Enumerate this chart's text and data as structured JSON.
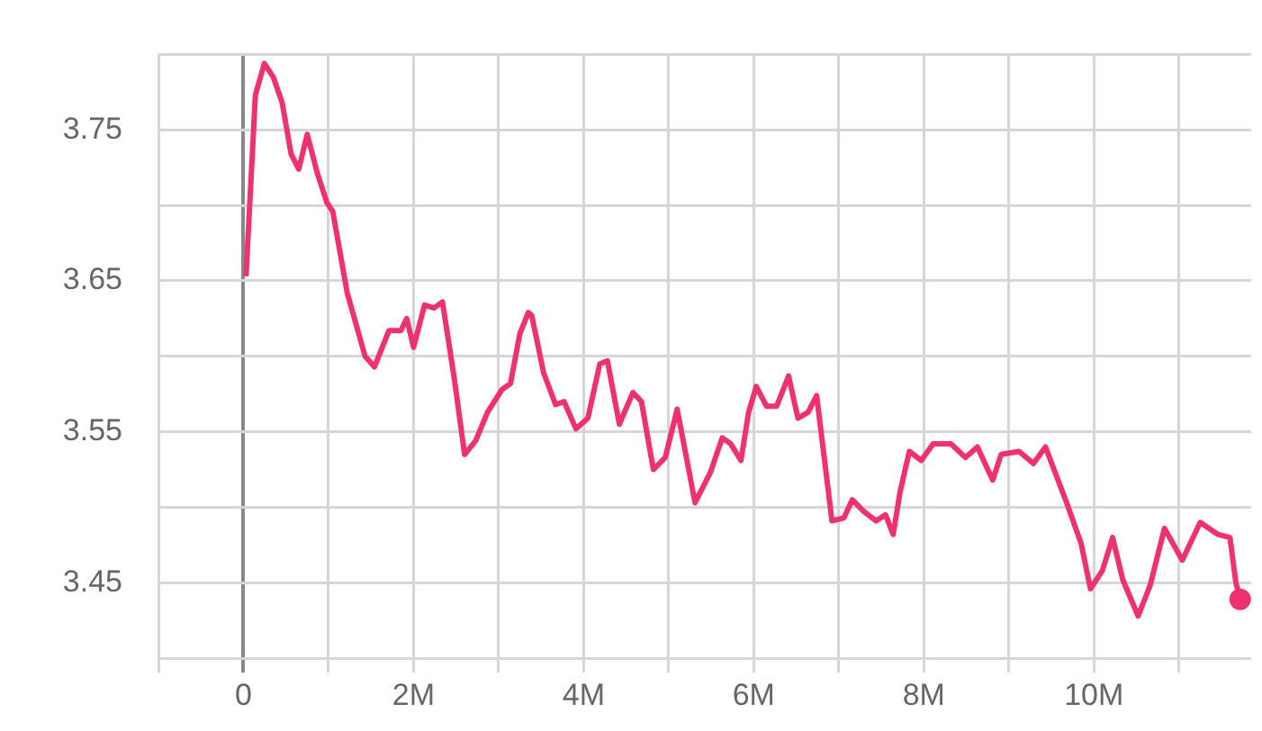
{
  "chart_data": {
    "type": "line",
    "x": [
      30000,
      140000,
      245000,
      350000,
      455000,
      560000,
      650000,
      750000,
      870000,
      980000,
      1050000,
      1220000,
      1430000,
      1540000,
      1710000,
      1850000,
      1920000,
      2000000,
      2130000,
      2240000,
      2340000,
      2480000,
      2600000,
      2730000,
      2870000,
      3040000,
      3140000,
      3250000,
      3350000,
      3390000,
      3530000,
      3670000,
      3770000,
      3910000,
      4050000,
      4190000,
      4280000,
      4420000,
      4580000,
      4680000,
      4820000,
      4960000,
      5100000,
      5310000,
      5490000,
      5630000,
      5730000,
      5850000,
      5940000,
      6030000,
      6150000,
      6270000,
      6410000,
      6520000,
      6640000,
      6740000,
      6920000,
      7060000,
      7160000,
      7300000,
      7440000,
      7550000,
      7640000,
      7720000,
      7830000,
      7970000,
      8110000,
      8320000,
      8490000,
      8630000,
      8810000,
      8910000,
      9120000,
      9290000,
      9430000,
      9680000,
      9850000,
      9960000,
      10100000,
      10220000,
      10340000,
      10520000,
      10660000,
      10830000,
      11040000,
      11250000,
      11460000,
      11600000,
      11670000,
      11720000
    ],
    "series": [
      {
        "color": "#f0316f",
        "values": [
          3.653,
          3.773,
          3.794,
          3.785,
          3.768,
          3.734,
          3.724,
          3.747,
          3.721,
          3.702,
          3.696,
          3.642,
          3.6,
          3.593,
          3.617,
          3.617,
          3.625,
          3.606,
          3.634,
          3.632,
          3.636,
          3.585,
          3.535,
          3.544,
          3.563,
          3.578,
          3.582,
          3.615,
          3.629,
          3.627,
          3.589,
          3.568,
          3.57,
          3.552,
          3.559,
          3.595,
          3.597,
          3.555,
          3.576,
          3.57,
          3.525,
          3.533,
          3.565,
          3.503,
          3.523,
          3.546,
          3.542,
          3.531,
          3.563,
          3.58,
          3.567,
          3.567,
          3.587,
          3.559,
          3.563,
          3.574,
          3.491,
          3.493,
          3.505,
          3.497,
          3.491,
          3.495,
          3.482,
          3.51,
          3.537,
          3.531,
          3.542,
          3.542,
          3.533,
          3.54,
          3.518,
          3.535,
          3.537,
          3.529,
          3.54,
          3.503,
          3.476,
          3.446,
          3.458,
          3.48,
          3.452,
          3.428,
          3.448,
          3.486,
          3.465,
          3.49,
          3.482,
          3.48,
          3.45,
          3.439
        ]
      }
    ],
    "xlim": [
      -1000000,
      11850000
    ],
    "xticks": [
      {
        "value": -1000000,
        "label": null
      },
      {
        "value": 0,
        "label": "0"
      },
      {
        "value": 1000000,
        "label": null
      },
      {
        "value": 2000000,
        "label": "2M"
      },
      {
        "value": 3000000,
        "label": null
      },
      {
        "value": 4000000,
        "label": "4M"
      },
      {
        "value": 5000000,
        "label": null
      },
      {
        "value": 6000000,
        "label": "6M"
      },
      {
        "value": 7000000,
        "label": null
      },
      {
        "value": 8000000,
        "label": "8M"
      },
      {
        "value": 9000000,
        "label": null
      },
      {
        "value": 10000000,
        "label": "10M"
      },
      {
        "value": 11000000,
        "label": null
      }
    ],
    "ylim": [
      3.4,
      3.8
    ],
    "yticks": [
      {
        "value": 3.4,
        "label": null
      },
      3.45,
      {
        "value": 3.5,
        "label": null
      },
      3.55,
      {
        "value": 3.6,
        "label": null
      },
      3.65,
      {
        "value": 3.7,
        "label": null
      },
      3.75,
      {
        "value": 3.8,
        "label": null
      }
    ],
    "grid": true,
    "legend": false,
    "marker": "none",
    "line_style": "solid"
  }
}
